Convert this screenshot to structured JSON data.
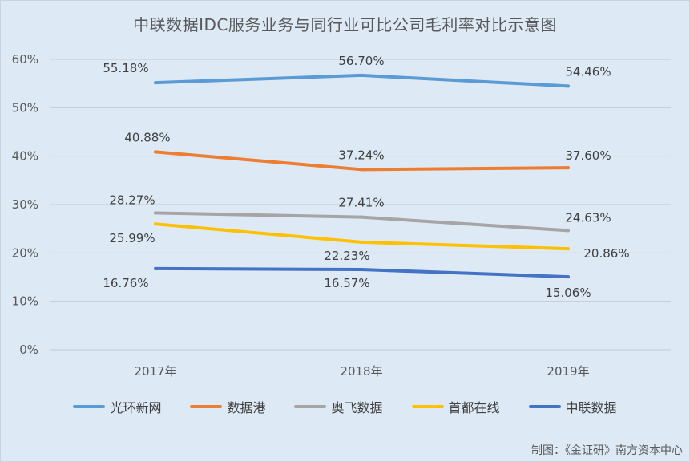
{
  "chart_data": {
    "type": "line",
    "title": "中联数据IDC服务业务与同行业可比公司毛利率对比示意图",
    "categories": [
      "2017年",
      "2018年",
      "2019年"
    ],
    "y_ticks": [
      "0%",
      "10%",
      "20%",
      "30%",
      "40%",
      "50%",
      "60%"
    ],
    "ylim": [
      0,
      60
    ],
    "grid": true,
    "legend_position": "bottom",
    "series": [
      {
        "name": "光环新网",
        "color": "#5b9bd5",
        "values": [
          55.18,
          56.7,
          54.46
        ],
        "labels": [
          "55.18%",
          "56.70%",
          "54.46%"
        ]
      },
      {
        "name": "数据港",
        "color": "#ed7d31",
        "values": [
          40.88,
          37.24,
          37.6
        ],
        "labels": [
          "40.88%",
          "37.24%",
          "37.60%"
        ]
      },
      {
        "name": "奥飞数据",
        "color": "#a5a5a5",
        "values": [
          28.27,
          27.41,
          24.63
        ],
        "labels": [
          "28.27%",
          "27.41%",
          "24.63%"
        ]
      },
      {
        "name": "首都在线",
        "color": "#ffc000",
        "values": [
          25.99,
          22.23,
          20.86
        ],
        "labels": [
          "25.99%",
          "22.23%",
          "20.86%"
        ]
      },
      {
        "name": "中联数据",
        "color": "#4472c4",
        "values": [
          16.76,
          16.57,
          15.06
        ],
        "labels": [
          "16.76%",
          "16.57%",
          "15.06%"
        ]
      }
    ]
  },
  "source_note": "制图：《金证研》南方资本中心"
}
